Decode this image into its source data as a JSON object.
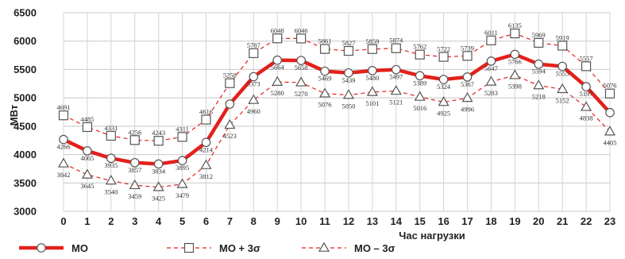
{
  "chart_data": {
    "type": "line",
    "xlabel": "Час нагрузки",
    "ylabel": "МВт",
    "ylim": [
      3000,
      6500
    ],
    "ytick_step": 500,
    "grid": true,
    "legend_position": "bottom-left",
    "categories": [
      "0",
      "1",
      "2",
      "3",
      "4",
      "5",
      "6",
      "7",
      "8",
      "9",
      "10",
      "11",
      "12",
      "13",
      "14",
      "15",
      "16",
      "17",
      "18",
      "19",
      "20",
      "21",
      "22",
      "23"
    ],
    "series": [
      {
        "name": "МО",
        "color": "#e3201b",
        "marker": "circle",
        "values": [
          4266,
          4065,
          3935,
          3857,
          3834,
          3895,
          4214,
          4890,
          5373,
          5664,
          5658,
          5469,
          5439,
          5480,
          5497,
          5389,
          5324,
          5367,
          5647,
          5766,
          5594,
          5555,
          5197,
          4740
        ]
      },
      {
        "name": "МО + 3σ",
        "color": "#e3201b",
        "marker": "square",
        "values": [
          4691,
          4485,
          4331,
          4256,
          4243,
          4311,
          4616,
          5258,
          5787,
          6048,
          6046,
          5861,
          5827,
          5859,
          5874,
          5762,
          5722,
          5739,
          6011,
          6135,
          5969,
          5919,
          5557,
          5076
        ]
      },
      {
        "name": "МО – 3σ",
        "color": "#e3201b",
        "marker": "triangle",
        "values": [
          3842,
          3645,
          3540,
          3459,
          3425,
          3479,
          3812,
          4523,
          4960,
          5280,
          5270,
          5076,
          5050,
          5101,
          5121,
          5016,
          4925,
          4996,
          5283,
          5398,
          5218,
          5152,
          4838,
          4405
        ]
      }
    ],
    "data_labels": {
      "МО": [
        "4266",
        "4065",
        "3935",
        "3857",
        "3834",
        "3895",
        "4214",
        "",
        "5373",
        "5664",
        "5658",
        "5469",
        "5439",
        "5480",
        "5497",
        "5389",
        "5324",
        "5367",
        "5647",
        "5766",
        "5594",
        "5555",
        "5197",
        ""
      ],
      "МО + 3σ": [
        "4691",
        "4485",
        "4331",
        "4256",
        "4243",
        "4311",
        "4616",
        "5258",
        "5787",
        "6048",
        "6046",
        "5861",
        "5827",
        "5859",
        "5874",
        "5762",
        "5722",
        "5739",
        "6011",
        "6135",
        "5969",
        "5919",
        "5557",
        "5076"
      ],
      "МО – 3σ": [
        "3842",
        "3645",
        "3540",
        "3459",
        "3425",
        "3479",
        "3812",
        "4523",
        "4960",
        "5280",
        "5270",
        "5076",
        "5050",
        "5101",
        "5121",
        "5016",
        "4925",
        "4996",
        "5283",
        "5398",
        "5218",
        "5152",
        "4838",
        "4405"
      ]
    }
  }
}
